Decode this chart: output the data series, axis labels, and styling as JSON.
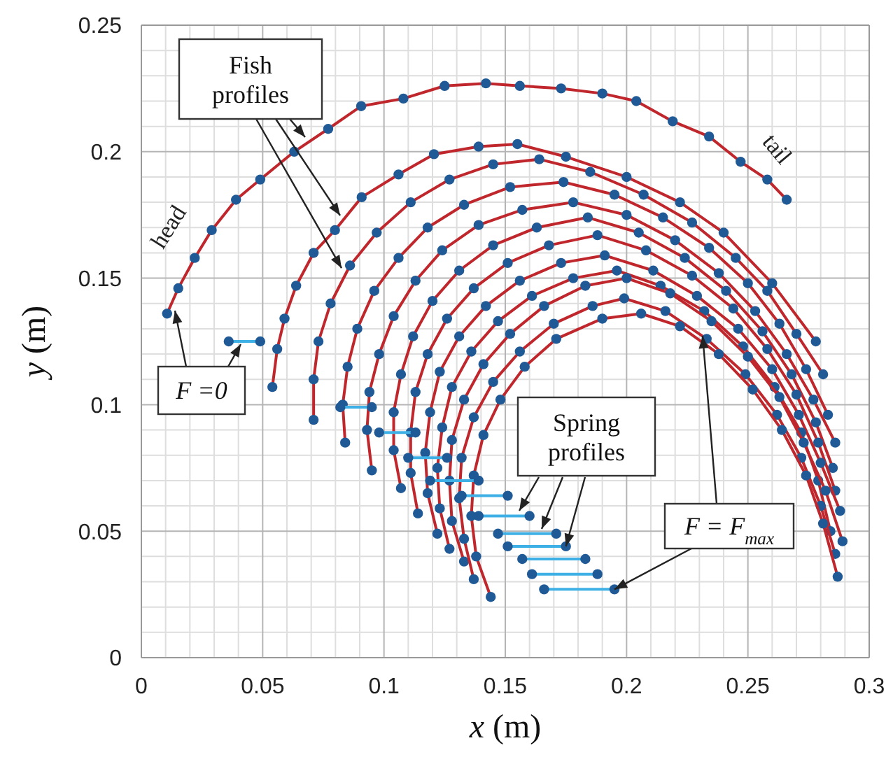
{
  "chart_data": {
    "type": "line",
    "xlabel": "x (m)",
    "ylabel": "y (m)",
    "xlim": [
      0,
      0.3
    ],
    "xticks": [
      0,
      0.05,
      0.1,
      0.15,
      0.2,
      0.25,
      0.3
    ],
    "ylim": [
      0,
      0.25
    ],
    "yticks": [
      0,
      0.05,
      0.1,
      0.15,
      0.2,
      0.25
    ],
    "grid": true,
    "marker": "circle",
    "annotations": [
      {
        "text": "Fish profiles",
        "x": 0.0825,
        "y": 0.154
      },
      {
        "text": "Spring profiles",
        "x": 0.175,
        "y": 0.044
      },
      "F =0",
      {
        "text": "F = F$_{max}$",
        "x": 0.195,
        "y": 0.027
      },
      "head",
      "tail"
    ],
    "series": [
      {
        "color": "#c0272d",
        "colors": [
          "#1f5a96",
          "#1f5a96",
          "#1f5a96",
          "#1f5a96",
          "#1f5a96",
          "#1f5a96",
          "#1f5a96",
          "#1f5a96",
          "#1f5a96",
          "#1f5a96",
          "#1f5a96",
          "#1f5a96",
          "#1f5a96",
          "#1f5a96",
          "#1f5a96",
          "#1f5a96",
          "#1f5a96",
          "#1f5a96",
          "#1f5a96",
          "#1f5a96",
          "#1f5a96"
        ],
        "x": [
          0.0106,
          0.0152,
          0.022,
          0.029,
          0.039,
          0.049,
          0.063,
          0.077,
          0.0906,
          0.108,
          0.125,
          0.142,
          0.156,
          0.173,
          0.19,
          0.204,
          0.219,
          0.234,
          0.247,
          0.258,
          0.266
        ],
        "values": [
          0.136,
          0.146,
          0.158,
          0.169,
          0.181,
          0.189,
          0.2,
          0.209,
          0.218,
          0.221,
          0.226,
          0.227,
          0.226,
          0.225,
          0.223,
          0.22,
          0.212,
          0.206,
          0.196,
          0.189,
          0.181
        ]
      },
      {
        "color": "#c0272d",
        "colors": [
          "#1f5a96",
          "#1f5a96",
          "#1f5a96",
          "#1f5a96",
          "#1f5a96",
          "#1f5a96",
          "#1f5a96",
          "#1f5a96",
          "#1f5a96",
          "#1f5a96",
          "#1f5a96",
          "#1f5a96",
          "#1f5a96",
          "#1f5a96",
          "#1f5a96",
          "#1f5a96",
          "#1f5a96"
        ],
        "x": [
          0.054,
          0.056,
          0.059,
          0.0638,
          0.071,
          0.0798,
          0.0908,
          0.106,
          0.1206,
          0.139,
          0.155,
          0.175,
          0.2,
          0.222,
          0.24,
          0.26,
          0.278
        ],
        "values": [
          0.107,
          0.122,
          0.134,
          0.147,
          0.16,
          0.169,
          0.182,
          0.191,
          0.199,
          0.202,
          0.203,
          0.198,
          0.19,
          0.18,
          0.168,
          0.148,
          0.125
        ]
      },
      {
        "color": "#c0272d",
        "colors": [
          "#1f5a96",
          "#1f5a96",
          "#1f5a96",
          "#1f5a96",
          "#1f5a96",
          "#1f5a96",
          "#1f5a96",
          "#1f5a96",
          "#1f5a96",
          "#1f5a96",
          "#1f5a96",
          "#1f5a96",
          "#1f5a96",
          "#1f5a96",
          "#1f5a96",
          "#1f5a96",
          "#1f5a96"
        ],
        "x": [
          0.071,
          0.071,
          0.073,
          0.078,
          0.086,
          0.097,
          0.111,
          0.127,
          0.145,
          0.164,
          0.185,
          0.207,
          0.227,
          0.245,
          0.258,
          0.27,
          0.281
        ],
        "values": [
          0.094,
          0.11,
          0.125,
          0.14,
          0.155,
          0.168,
          0.18,
          0.189,
          0.195,
          0.197,
          0.192,
          0.183,
          0.172,
          0.158,
          0.145,
          0.128,
          0.112
        ]
      },
      {
        "color": "#c0272d",
        "colors": [
          "#1f5a96",
          "#1f5a96",
          "#1f5a96",
          "#1f5a96",
          "#1f5a96",
          "#1f5a96",
          "#1f5a96",
          "#1f5a96",
          "#1f5a96",
          "#1f5a96",
          "#1f5a96",
          "#1f5a96",
          "#1f5a96",
          "#1f5a96",
          "#1f5a96",
          "#1f5a96",
          "#1f5a96"
        ],
        "x": [
          0.084,
          0.083,
          0.085,
          0.089,
          0.096,
          0.106,
          0.118,
          0.133,
          0.152,
          0.174,
          0.195,
          0.215,
          0.234,
          0.25,
          0.263,
          0.274,
          0.283
        ],
        "values": [
          0.085,
          0.1,
          0.115,
          0.13,
          0.145,
          0.158,
          0.17,
          0.179,
          0.186,
          0.188,
          0.183,
          0.174,
          0.162,
          0.148,
          0.132,
          0.114,
          0.096
        ]
      },
      {
        "color": "#c0272d",
        "colors": [
          "#1f5a96",
          "#1f5a96",
          "#1f5a96",
          "#1f5a96",
          "#1f5a96",
          "#1f5a96",
          "#1f5a96",
          "#1f5a96",
          "#1f5a96",
          "#1f5a96",
          "#1f5a96",
          "#1f5a96",
          "#1f5a96",
          "#1f5a96",
          "#1f5a96",
          "#1f5a96",
          "#1f5a96"
        ],
        "x": [
          0.095,
          0.093,
          0.094,
          0.098,
          0.104,
          0.113,
          0.124,
          0.139,
          0.157,
          0.178,
          0.2,
          0.22,
          0.238,
          0.253,
          0.266,
          0.277,
          0.286
        ],
        "values": [
          0.074,
          0.09,
          0.105,
          0.12,
          0.135,
          0.149,
          0.161,
          0.171,
          0.177,
          0.18,
          0.175,
          0.165,
          0.152,
          0.137,
          0.12,
          0.102,
          0.085
        ]
      },
      {
        "color": "#c0272d",
        "colors": [
          "#1f5a96",
          "#1f5a96",
          "#1f5a96",
          "#1f5a96",
          "#1f5a96",
          "#1f5a96",
          "#1f5a96",
          "#1f5a96",
          "#1f5a96",
          "#1f5a96",
          "#1f5a96",
          "#1f5a96",
          "#1f5a96",
          "#1f5a96",
          "#1f5a96",
          "#1f5a96",
          "#1f5a96"
        ],
        "x": [
          0.107,
          0.104,
          0.104,
          0.107,
          0.112,
          0.12,
          0.131,
          0.145,
          0.163,
          0.184,
          0.205,
          0.224,
          0.241,
          0.256,
          0.268,
          0.278,
          0.285
        ],
        "values": [
          0.067,
          0.082,
          0.097,
          0.112,
          0.127,
          0.141,
          0.153,
          0.163,
          0.17,
          0.174,
          0.168,
          0.158,
          0.145,
          0.129,
          0.112,
          0.093,
          0.075
        ]
      },
      {
        "color": "#c0272d",
        "colors": [
          "#1f5a96",
          "#1f5a96",
          "#1f5a96",
          "#1f5a96",
          "#1f5a96",
          "#1f5a96",
          "#1f5a96",
          "#1f5a96",
          "#1f5a96",
          "#1f5a96",
          "#1f5a96",
          "#1f5a96",
          "#1f5a96",
          "#1f5a96",
          "#1f5a96",
          "#1f5a96",
          "#1f5a96"
        ],
        "x": [
          0.114,
          0.111,
          0.111,
          0.113,
          0.118,
          0.126,
          0.137,
          0.151,
          0.168,
          0.188,
          0.208,
          0.227,
          0.244,
          0.258,
          0.27,
          0.279,
          0.286
        ],
        "values": [
          0.057,
          0.073,
          0.089,
          0.105,
          0.12,
          0.134,
          0.146,
          0.156,
          0.163,
          0.167,
          0.161,
          0.151,
          0.138,
          0.122,
          0.104,
          0.085,
          0.066
        ]
      },
      {
        "color": "#c0272d",
        "colors": [
          "#1f5a96",
          "#1f5a96",
          "#1f5a96",
          "#1f5a96",
          "#1f5a96",
          "#1f5a96",
          "#1f5a96",
          "#1f5a96",
          "#1f5a96",
          "#1f5a96",
          "#1f5a96",
          "#1f5a96",
          "#1f5a96",
          "#1f5a96",
          "#1f5a96",
          "#1f5a96",
          "#1f5a96"
        ],
        "x": [
          0.122,
          0.118,
          0.117,
          0.119,
          0.123,
          0.131,
          0.142,
          0.156,
          0.173,
          0.191,
          0.211,
          0.229,
          0.246,
          0.26,
          0.271,
          0.28,
          0.288
        ],
        "values": [
          0.049,
          0.065,
          0.081,
          0.097,
          0.113,
          0.127,
          0.139,
          0.149,
          0.156,
          0.159,
          0.153,
          0.143,
          0.13,
          0.114,
          0.096,
          0.077,
          0.058
        ]
      },
      {
        "color": "#c0272d",
        "colors": [
          "#1f5a96",
          "#1f5a96",
          "#1f5a96",
          "#1f5a96",
          "#1f5a96",
          "#1f5a96",
          "#1f5a96",
          "#1f5a96",
          "#1f5a96",
          "#1f5a96",
          "#1f5a96",
          "#1f5a96",
          "#1f5a96",
          "#1f5a96",
          "#1f5a96",
          "#1f5a96",
          "#1f5a96"
        ],
        "x": [
          0.127,
          0.123,
          0.122,
          0.124,
          0.128,
          0.136,
          0.147,
          0.161,
          0.178,
          0.196,
          0.214,
          0.232,
          0.248,
          0.261,
          0.272,
          0.279,
          0.284
        ],
        "values": [
          0.043,
          0.059,
          0.075,
          0.091,
          0.107,
          0.121,
          0.133,
          0.143,
          0.15,
          0.153,
          0.147,
          0.137,
          0.123,
          0.107,
          0.089,
          0.07,
          0.05
        ]
      },
      {
        "color": "#c0272d",
        "colors": [
          "#1f5a96",
          "#1f5a96",
          "#1f5a96",
          "#1f5a96",
          "#1f5a96",
          "#1f5a96",
          "#1f5a96",
          "#1f5a96",
          "#1f5a96",
          "#1f5a96",
          "#1f5a96",
          "#1f5a96",
          "#1f5a96",
          "#1f5a96",
          "#1f5a96",
          "#1f5a96",
          "#1f5a96"
        ],
        "x": [
          0.133,
          0.128,
          0.127,
          0.128,
          0.133,
          0.141,
          0.152,
          0.166,
          0.183,
          0.2,
          0.218,
          0.235,
          0.25,
          0.263,
          0.273,
          0.282,
          0.289
        ],
        "values": [
          0.038,
          0.054,
          0.07,
          0.086,
          0.102,
          0.116,
          0.128,
          0.139,
          0.147,
          0.15,
          0.144,
          0.133,
          0.119,
          0.103,
          0.085,
          0.066,
          0.046
        ]
      },
      {
        "color": "#c0272d",
        "colors": [
          "#1f5a96",
          "#1f5a96",
          "#1f5a96",
          "#1f5a96",
          "#1f5a96",
          "#1f5a96",
          "#1f5a96",
          "#1f5a96",
          "#1f5a96",
          "#1f5a96",
          "#1f5a96",
          "#1f5a96",
          "#1f5a96",
          "#1f5a96",
          "#1f5a96",
          "#1f5a96",
          "#1f5a96"
        ],
        "x": [
          0.137,
          0.133,
          0.131,
          0.132,
          0.137,
          0.145,
          0.156,
          0.17,
          0.186,
          0.199,
          0.216,
          0.233,
          0.249,
          0.262,
          0.272,
          0.28,
          0.286
        ],
        "values": [
          0.031,
          0.047,
          0.063,
          0.079,
          0.095,
          0.109,
          0.121,
          0.132,
          0.139,
          0.142,
          0.137,
          0.126,
          0.112,
          0.096,
          0.079,
          0.06,
          0.041
        ]
      },
      {
        "color": "#c0272d",
        "colors": [
          "#1f5a96",
          "#1f5a96",
          "#1f5a96",
          "#1f5a96",
          "#1f5a96",
          "#1f5a96",
          "#1f5a96",
          "#1f5a96",
          "#1f5a96",
          "#1f5a96",
          "#1f5a96",
          "#1f5a96",
          "#1f5a96",
          "#1f5a96",
          "#1f5a96",
          "#1f5a96",
          "#1f5a96"
        ],
        "x": [
          0.144,
          0.138,
          0.136,
          0.137,
          0.141,
          0.148,
          0.158,
          0.171,
          0.19,
          0.206,
          0.222,
          0.238,
          0.252,
          0.264,
          0.274,
          0.281,
          0.287
        ],
        "values": [
          0.024,
          0.04,
          0.056,
          0.072,
          0.088,
          0.102,
          0.115,
          0.126,
          0.134,
          0.136,
          0.131,
          0.12,
          0.106,
          0.09,
          0.072,
          0.053,
          0.032
        ]
      },
      {
        "color": "#3fb0e6",
        "colors": [
          "#1f5a96",
          "#1f5a96"
        ],
        "x": [
          0.036,
          0.049
        ],
        "values": [
          0.125,
          0.125
        ]
      },
      {
        "color": "#3fb0e6",
        "colors": [
          "#1f5a96",
          "#1f5a96"
        ],
        "x": [
          0.082,
          0.095
        ],
        "values": [
          0.099,
          0.099
        ]
      },
      {
        "color": "#3fb0e6",
        "colors": [
          "#1f5a96",
          "#1f5a96"
        ],
        "x": [
          0.098,
          0.113
        ],
        "values": [
          0.089,
          0.089
        ]
      },
      {
        "color": "#3fb0e6",
        "colors": [
          "#1f5a96",
          "#1f5a96"
        ],
        "x": [
          0.11,
          0.126
        ],
        "values": [
          0.079,
          0.079
        ]
      },
      {
        "color": "#3fb0e6",
        "colors": [
          "#1f5a96",
          "#1f5a96"
        ],
        "x": [
          0.119,
          0.139
        ],
        "values": [
          0.07,
          0.07
        ]
      },
      {
        "color": "#3fb0e6",
        "colors": [
          "#1f5a96",
          "#1f5a96"
        ],
        "x": [
          0.132,
          0.151
        ],
        "values": [
          0.064,
          0.064
        ]
      },
      {
        "color": "#3fb0e6",
        "colors": [
          "#1f5a96",
          "#1f5a96"
        ],
        "x": [
          0.139,
          0.16
        ],
        "values": [
          0.056,
          0.056
        ]
      },
      {
        "color": "#3fb0e6",
        "colors": [
          "#1f5a96",
          "#1f5a96"
        ],
        "x": [
          0.147,
          0.171
        ],
        "values": [
          0.049,
          0.049
        ]
      },
      {
        "color": "#3fb0e6",
        "colors": [
          "#1f5a96",
          "#1f5a96"
        ],
        "x": [
          0.151,
          0.175
        ],
        "values": [
          0.044,
          0.044
        ]
      },
      {
        "color": "#3fb0e6",
        "colors": [
          "#1f5a96",
          "#1f5a96"
        ],
        "x": [
          0.157,
          0.183
        ],
        "values": [
          0.039,
          0.039
        ]
      },
      {
        "color": "#3fb0e6",
        "colors": [
          "#1f5a96",
          "#1f5a96"
        ],
        "x": [
          0.161,
          0.188
        ],
        "values": [
          0.033,
          0.033
        ]
      },
      {
        "color": "#3fb0e6",
        "colors": [
          "#1f5a96",
          "#1f5a96"
        ],
        "x": [
          0.166,
          0.195
        ],
        "values": [
          0.027,
          0.027
        ]
      }
    ]
  }
}
